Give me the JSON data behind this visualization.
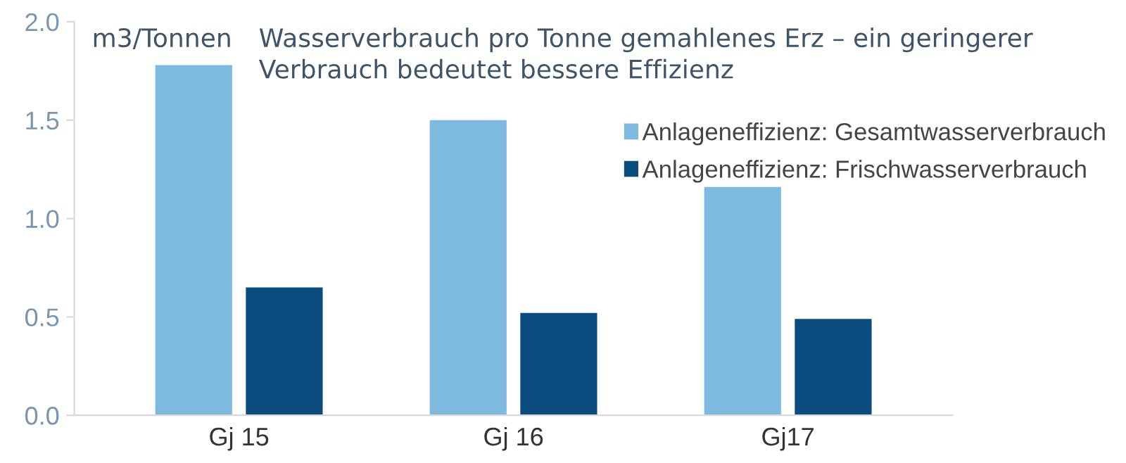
{
  "chart_data": {
    "type": "bar",
    "title": "Wasserverbrauch pro Tonne gemahlenes Erz – ein geringerer\nVerbrauch bedeutet bessere Effizienz",
    "ylabel": "m3/Tonnen",
    "categories": [
      "Gj 15",
      "Gj 16",
      "Gj17"
    ],
    "series": [
      {
        "name": "Anlageneffizienz: Gesamtwasserverbrauch",
        "color": "#7ebae0",
        "values": [
          1.78,
          1.5,
          1.16
        ]
      },
      {
        "name": "Anlageneffizienz: Frischwasserverbrauch",
        "color": "#0b4c7e",
        "values": [
          0.65,
          0.52,
          0.49
        ]
      }
    ],
    "ylim": [
      0,
      2.0
    ],
    "yticks": [
      {
        "value": 0,
        "label": "0.0"
      },
      {
        "value": 0.5,
        "label": "0.5"
      },
      {
        "value": 1.0,
        "label": "1.0"
      },
      {
        "value": 1.5,
        "label": "1.5"
      },
      {
        "value": 2.0,
        "label": "2.0"
      }
    ],
    "grid": false,
    "legend": "top right"
  }
}
